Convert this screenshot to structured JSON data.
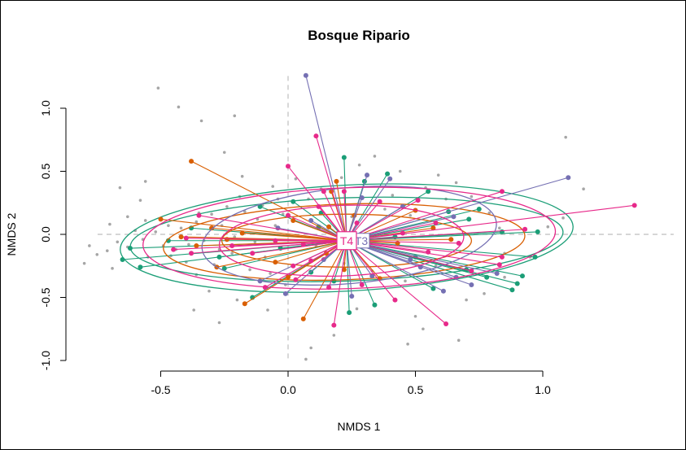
{
  "chart_data": {
    "type": "scatter",
    "title": "Bosque Ripario",
    "xlabel": "NMDS 1",
    "ylabel": "NMDS 2",
    "xlim": [
      -0.62,
      1.45
    ],
    "ylim": [
      -1.0,
      1.32
    ],
    "xticks": [
      "-0.5",
      "0.0",
      "0.5",
      "1.0"
    ],
    "xtick_values": [
      -0.5,
      0.0,
      0.5,
      1.0
    ],
    "yticks": [
      "-1.0",
      "-0.5",
      "0.0",
      "0.5",
      "1.0"
    ],
    "ytick_values": [
      -1.0,
      -0.5,
      0.0,
      0.5,
      1.0
    ],
    "reference_lines": {
      "x": 0.0,
      "y": 0.0,
      "style": "dashed",
      "color": "#bdbdbd"
    },
    "background_points": {
      "color": "#a6a6a6",
      "points": [
        [
          -0.51,
          1.16
        ],
        [
          -0.43,
          1.01
        ],
        [
          -0.34,
          0.9
        ],
        [
          -0.21,
          0.94
        ],
        [
          -0.25,
          0.65
        ],
        [
          -0.18,
          0.46
        ],
        [
          -0.06,
          0.38
        ],
        [
          -0.66,
          0.37
        ],
        [
          -0.56,
          0.42
        ],
        [
          -0.58,
          0.27
        ],
        [
          -0.63,
          0.14
        ],
        [
          -0.7,
          0.08
        ],
        [
          -0.67,
          -0.06
        ],
        [
          -0.78,
          -0.09
        ],
        [
          -0.71,
          -0.13
        ],
        [
          -0.63,
          -0.1
        ],
        [
          -0.6,
          0.03
        ],
        [
          -0.56,
          0.11
        ],
        [
          -0.52,
          0.02
        ],
        [
          -0.49,
          -0.09
        ],
        [
          -0.46,
          -0.17
        ],
        [
          -0.42,
          0.05
        ],
        [
          -0.4,
          -0.22
        ],
        [
          -0.36,
          0.1
        ],
        [
          -0.33,
          -0.05
        ],
        [
          -0.3,
          0.16
        ],
        [
          -0.27,
          -0.12
        ],
        [
          -0.24,
          0.22
        ],
        [
          -0.21,
          -0.02
        ],
        [
          -0.19,
          0.3
        ],
        [
          -0.15,
          -0.28
        ],
        [
          -0.12,
          0.12
        ],
        [
          -0.09,
          -0.18
        ],
        [
          -0.05,
          0.07
        ],
        [
          -0.01,
          -0.4
        ],
        [
          -0.04,
          0.28
        ],
        [
          -0.36,
          -0.32
        ],
        [
          -0.31,
          -0.45
        ],
        [
          -0.2,
          -0.52
        ],
        [
          -0.08,
          -0.6
        ],
        [
          -0.27,
          -0.7
        ],
        [
          -0.37,
          -0.6
        ],
        [
          0.09,
          -0.9
        ],
        [
          0.18,
          -0.8
        ],
        [
          0.27,
          -0.59
        ],
        [
          0.5,
          -0.65
        ],
        [
          0.53,
          -0.75
        ],
        [
          0.47,
          -0.87
        ],
        [
          0.67,
          -0.84
        ],
        [
          0.07,
          -0.99
        ],
        [
          0.7,
          -0.52
        ],
        [
          0.77,
          -0.47
        ],
        [
          0.85,
          -0.34
        ],
        [
          0.85,
          -0.15
        ],
        [
          0.83,
          0.05
        ],
        [
          0.79,
          0.17
        ],
        [
          0.72,
          0.3
        ],
        [
          0.66,
          0.41
        ],
        [
          0.59,
          0.47
        ],
        [
          0.54,
          0.37
        ],
        [
          0.44,
          0.5
        ],
        [
          0.41,
          0.31
        ],
        [
          0.34,
          0.62
        ],
        [
          0.28,
          0.55
        ],
        [
          0.21,
          0.45
        ],
        [
          0.13,
          0.36
        ],
        [
          0.08,
          0.28
        ],
        [
          0.03,
          0.44
        ],
        [
          1.09,
          0.77
        ],
        [
          1.16,
          0.36
        ],
        [
          1.08,
          0.13
        ],
        [
          1.02,
          0.06
        ],
        [
          0.95,
          -0.18
        ],
        [
          0.62,
          0.28
        ],
        [
          0.48,
          0.15
        ],
        [
          0.38,
          0.2
        ],
        [
          0.25,
          0.14
        ],
        [
          0.16,
          0.05
        ],
        [
          0.11,
          -0.09
        ],
        [
          0.22,
          -0.23
        ],
        [
          0.33,
          -0.29
        ],
        [
          0.46,
          -0.37
        ],
        [
          0.58,
          -0.25
        ],
        [
          -0.8,
          -0.23
        ],
        [
          -0.75,
          -0.16
        ],
        [
          -0.69,
          -0.27
        ],
        [
          -0.57,
          -0.04
        ],
        [
          -0.55,
          -0.18
        ],
        [
          -0.47,
          0.07
        ],
        [
          -0.44,
          -0.12
        ],
        [
          -0.39,
          -0.08
        ],
        [
          -0.35,
          0.17
        ],
        [
          -0.29,
          -0.24
        ],
        [
          -0.26,
          0.07
        ],
        [
          -0.22,
          -0.15
        ],
        [
          -0.17,
          0.18
        ],
        [
          -0.13,
          -0.06
        ],
        [
          -0.1,
          0.23
        ],
        [
          -0.07,
          -0.31
        ],
        [
          -0.02,
          0.16
        ]
      ]
    },
    "centroid": {
      "x": 0.23,
      "y": -0.05,
      "labels": [
        "T4",
        "T3"
      ]
    },
    "series": [
      {
        "color": "#1b9e77",
        "ellipses": [
          {
            "cx": 0.23,
            "cy": -0.03,
            "rx": 0.89,
            "ry": 0.42,
            "angle": 3
          },
          {
            "cx": 0.23,
            "cy": -0.04,
            "rx": 0.85,
            "ry": 0.33,
            "angle": 2
          }
        ],
        "points": [
          [
            -0.65,
            -0.2
          ],
          [
            -0.58,
            -0.26
          ],
          [
            -0.47,
            -0.05
          ],
          [
            -0.38,
            0.05
          ],
          [
            -0.27,
            -0.18
          ],
          [
            -0.11,
            0.22
          ],
          [
            -0.03,
            -0.11
          ],
          [
            0.09,
            -0.3
          ],
          [
            0.13,
            0.17
          ],
          [
            0.22,
            0.61
          ],
          [
            0.3,
            0.42
          ],
          [
            0.39,
            0.48
          ],
          [
            0.55,
            0.34
          ],
          [
            0.63,
            0.18
          ],
          [
            0.71,
            0.12
          ],
          [
            0.75,
            0.2
          ],
          [
            0.84,
            0.02
          ],
          [
            0.98,
            0.02
          ],
          [
            0.92,
            -0.33
          ],
          [
            0.9,
            -0.39
          ],
          [
            0.78,
            -0.34
          ],
          [
            0.7,
            -0.28
          ],
          [
            0.57,
            -0.43
          ],
          [
            0.34,
            -0.56
          ],
          [
            0.24,
            -0.62
          ],
          [
            0.18,
            -0.37
          ],
          [
            -0.14,
            -0.5
          ],
          [
            -0.25,
            -0.27
          ],
          [
            -0.62,
            -0.11
          ],
          [
            0.42,
            -0.02
          ],
          [
            0.12,
            0.06
          ],
          [
            0.02,
            0.26
          ],
          [
            0.97,
            -0.18
          ],
          [
            0.88,
            -0.44
          ],
          [
            0.5,
            -0.18
          ]
        ]
      },
      {
        "color": "#d95f02",
        "ellipses": [
          {
            "cx": 0.22,
            "cy": -0.06,
            "rx": 0.71,
            "ry": 0.3,
            "angle": 2
          },
          {
            "cx": 0.23,
            "cy": -0.05,
            "rx": 0.49,
            "ry": 0.21,
            "angle": 0
          }
        ],
        "points": [
          [
            -0.38,
            0.58
          ],
          [
            -0.5,
            0.12
          ],
          [
            -0.42,
            -0.02
          ],
          [
            -0.36,
            -0.09
          ],
          [
            -0.3,
            0.05
          ],
          [
            -0.24,
            -0.04
          ],
          [
            -0.18,
            0.01
          ],
          [
            -0.17,
            -0.55
          ],
          [
            -0.05,
            -0.22
          ],
          [
            0.0,
            -0.34
          ],
          [
            0.06,
            -0.67
          ],
          [
            0.15,
            -0.15
          ],
          [
            0.17,
            0.34
          ],
          [
            0.19,
            0.42
          ],
          [
            0.16,
            0.06
          ],
          [
            0.26,
            0.15
          ],
          [
            0.36,
            -0.35
          ],
          [
            0.43,
            -0.07
          ],
          [
            0.5,
            0.19
          ],
          [
            0.64,
            -0.04
          ],
          [
            0.57,
            0.05
          ],
          [
            0.22,
            -0.28
          ],
          [
            -0.28,
            -0.26
          ],
          [
            0.02,
            0.11
          ]
        ]
      },
      {
        "color": "#7570b3",
        "ellipses": [
          {
            "cx": 0.24,
            "cy": -0.01,
            "rx": 0.58,
            "ry": 0.38,
            "angle": 5
          }
        ],
        "points": [
          [
            0.07,
            1.26
          ],
          [
            0.31,
            0.47
          ],
          [
            0.4,
            0.44
          ],
          [
            0.45,
            0.22
          ],
          [
            0.65,
            0.14
          ],
          [
            1.1,
            0.45
          ],
          [
            0.82,
            -0.31
          ],
          [
            0.72,
            -0.4
          ],
          [
            0.66,
            -0.34
          ],
          [
            0.48,
            -0.2
          ],
          [
            0.33,
            -0.33
          ],
          [
            0.25,
            -0.49
          ],
          [
            -0.01,
            -0.47
          ],
          [
            -0.11,
            -0.37
          ],
          [
            -0.04,
            0.05
          ],
          [
            0.09,
            0.11
          ],
          [
            0.52,
            -0.26
          ],
          [
            0.61,
            -0.45
          ],
          [
            0.14,
            -0.2
          ],
          [
            0.29,
            0.29
          ]
        ]
      },
      {
        "color": "#e7298a",
        "ellipses": [
          {
            "cx": 0.24,
            "cy": -0.03,
            "rx": 0.81,
            "ry": 0.4,
            "angle": 2
          },
          {
            "cx": 0.21,
            "cy": -0.05,
            "rx": 0.48,
            "ry": 0.28,
            "angle": 2
          }
        ],
        "points": [
          [
            1.36,
            0.23
          ],
          [
            0.84,
            0.34
          ],
          [
            0.93,
            0.04
          ],
          [
            0.84,
            -0.18
          ],
          [
            0.83,
            -0.24
          ],
          [
            0.72,
            -0.29
          ],
          [
            0.62,
            -0.71
          ],
          [
            0.42,
            -0.52
          ],
          [
            0.29,
            -0.4
          ],
          [
            0.18,
            -0.72
          ],
          [
            0.16,
            -0.42
          ],
          [
            0.03,
            -0.36
          ],
          [
            -0.09,
            -0.42
          ],
          [
            -0.14,
            -0.15
          ],
          [
            -0.22,
            -0.09
          ],
          [
            -0.4,
            -0.03
          ],
          [
            -0.45,
            -0.12
          ],
          [
            -0.38,
            -0.15
          ],
          [
            -0.35,
            0.15
          ],
          [
            0.0,
            0.54
          ],
          [
            0.11,
            0.78
          ],
          [
            0.14,
            0.34
          ],
          [
            0.22,
            0.34
          ],
          [
            0.36,
            0.26
          ],
          [
            0.51,
            0.27
          ],
          [
            0.58,
            0.09
          ],
          [
            0.67,
            -0.07
          ],
          [
            0.12,
            0.22
          ],
          [
            0.0,
            0.15
          ],
          [
            0.06,
            -0.08
          ],
          [
            0.09,
            -0.21
          ],
          [
            0.27,
            0.09
          ],
          [
            0.45,
            0.01
          ],
          [
            0.55,
            -0.14
          ],
          [
            0.02,
            -0.25
          ],
          [
            -0.05,
            -0.05
          ]
        ]
      }
    ]
  }
}
